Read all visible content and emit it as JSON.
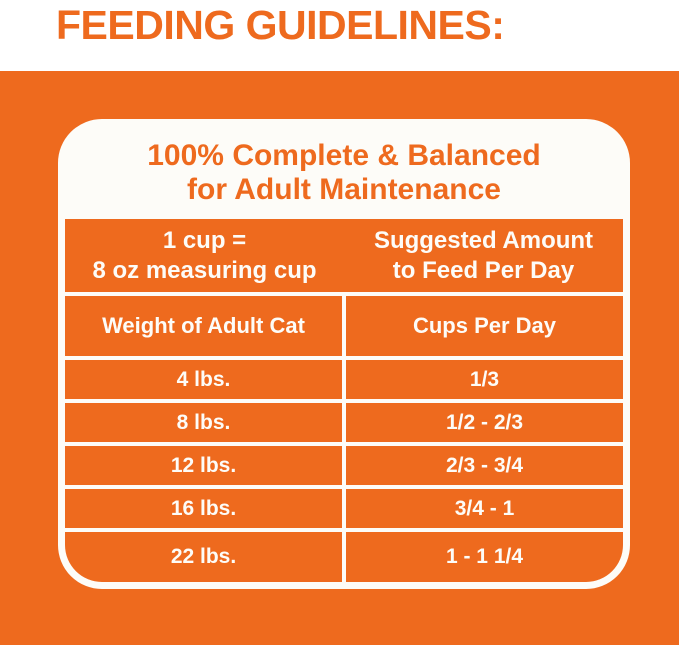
{
  "page_title": "FEEDING GUIDELINES:",
  "card": {
    "title_line1": "100% Complete & Balanced",
    "title_line2": "for Adult Maintenance",
    "header": {
      "left_line1": "1 cup =",
      "left_line2": "8 oz measuring cup",
      "right_line1": "Suggested Amount",
      "right_line2": "to Feed Per Day"
    },
    "columns": [
      "Weight of Adult Cat",
      "Cups Per Day"
    ],
    "rows": [
      {
        "weight": "4 lbs.",
        "cups": "1/3"
      },
      {
        "weight": "8 lbs.",
        "cups": "1/2 - 2/3"
      },
      {
        "weight": "12 lbs.",
        "cups": "2/3 - 3/4"
      },
      {
        "weight": "16 lbs.",
        "cups": "3/4 - 1"
      },
      {
        "weight": "22 lbs.",
        "cups": "1 - 1 1/4"
      }
    ]
  },
  "colors": {
    "orange": "#EE6A1E",
    "panel_white": "#FDFCF8"
  }
}
